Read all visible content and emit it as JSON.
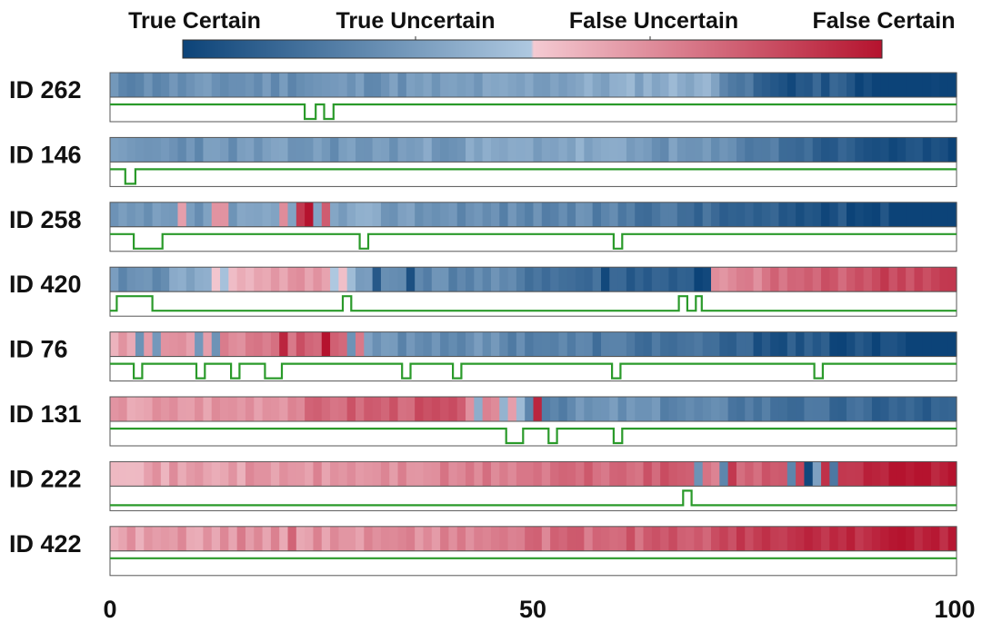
{
  "chart_data": {
    "type": "heatmap",
    "colorbar": {
      "labels": [
        "True Certain",
        "True Uncertain",
        "False Uncertain",
        "False Certain"
      ],
      "colors": {
        "true_certain": "#0c4378",
        "true_uncertain": "#aec8e0",
        "false_uncertain": "#f4cad2",
        "false_certain": "#b5132e"
      }
    },
    "xaxis": {
      "range": [
        0,
        100
      ],
      "ticks": [
        0,
        50,
        100
      ]
    },
    "line_color": "#2a9a2a",
    "rows": [
      {
        "label": "ID 262",
        "seed": 11,
        "prof": [
          [
            0,
            0.27
          ],
          [
            20,
            0.3
          ],
          [
            40,
            0.32
          ],
          [
            55,
            0.37
          ],
          [
            70,
            0.42
          ],
          [
            78,
            0.05
          ],
          [
            86,
            0.1
          ],
          [
            90,
            -0.02
          ],
          [
            100,
            -0.05
          ]
        ],
        "spikes": [],
        "dips": [
          [
            23,
            24.3
          ],
          [
            25.3,
            26.4
          ]
        ],
        "bumps": []
      },
      {
        "label": "ID 146",
        "seed": 23,
        "prof": [
          [
            0,
            0.3
          ],
          [
            30,
            0.32
          ],
          [
            55,
            0.38
          ],
          [
            75,
            0.25
          ],
          [
            85,
            0.1
          ],
          [
            100,
            -0.02
          ]
        ],
        "spikes": [],
        "dips": [
          [
            1.8,
            3
          ]
        ],
        "bumps": []
      },
      {
        "label": "ID 258",
        "seed": 37,
        "prof": [
          [
            0,
            0.28
          ],
          [
            15,
            0.32
          ],
          [
            30,
            0.36
          ],
          [
            45,
            0.28
          ],
          [
            55,
            0.25
          ],
          [
            65,
            0.2
          ],
          [
            75,
            0.1
          ],
          [
            85,
            0.05
          ],
          [
            100,
            -0.02
          ]
        ],
        "spikes": [
          [
            8.3,
            0.62
          ],
          [
            11.5,
            0.65
          ],
          [
            13.3,
            0.65
          ],
          [
            20.3,
            0.67
          ],
          [
            21.6,
            0.9
          ],
          [
            22.6,
            1.0
          ],
          [
            25.3,
            0.8
          ]
        ],
        "dips": [
          [
            2.8,
            6.2
          ],
          [
            29.5,
            30.5
          ],
          [
            59.5,
            60.5
          ]
        ],
        "bumps": []
      },
      {
        "label": "ID 420",
        "seed": 41,
        "segs": [
          [
            0,
            6,
            0.28
          ],
          [
            6,
            18,
            0.3
          ],
          [
            18,
            27,
            0.62
          ],
          [
            27,
            31,
            0.5
          ],
          [
            31,
            100,
            0.2
          ],
          [
            72,
            100,
            0.72
          ]
        ],
        "prof": [
          [
            0,
            0.28
          ],
          [
            6,
            0.3
          ],
          [
            18,
            0.62
          ],
          [
            26,
            0.62
          ],
          [
            31,
            0.28
          ],
          [
            45,
            0.25
          ],
          [
            55,
            0.15
          ],
          [
            65,
            0.1
          ],
          [
            70,
            0.15
          ],
          [
            71.5,
            0.62
          ],
          [
            80,
            0.75
          ],
          [
            90,
            0.85
          ],
          [
            100,
            0.88
          ]
        ],
        "spikes": [
          [
            26.3,
            0.5
          ],
          [
            31.2,
            0.08
          ],
          [
            34.5,
            0.05
          ],
          [
            57.7,
            0.02
          ],
          [
            68.7,
            0.0
          ],
          [
            69.5,
            0.02
          ]
        ],
        "dips": [],
        "bumps": [
          [
            0.8,
            5
          ],
          [
            27.5,
            28.5
          ],
          [
            67.2,
            68.2
          ],
          [
            69.2,
            69.9
          ]
        ]
      },
      {
        "label": "ID 76",
        "seed": 53,
        "prof": [
          [
            0,
            0.62
          ],
          [
            10,
            0.66
          ],
          [
            20,
            0.75
          ],
          [
            25,
            0.82
          ],
          [
            30,
            0.7
          ],
          [
            30.5,
            0.3
          ],
          [
            45,
            0.28
          ],
          [
            55,
            0.22
          ],
          [
            65,
            0.18
          ],
          [
            75,
            0.1
          ],
          [
            85,
            0.05
          ],
          [
            100,
            -0.02
          ]
        ],
        "spikes": [
          [
            2.5,
            0.3
          ],
          [
            5,
            0.32
          ],
          [
            9.5,
            0.32
          ],
          [
            12,
            0.3
          ],
          [
            20,
            0.95
          ],
          [
            25.3,
            1.0
          ],
          [
            27.5,
            0.3
          ]
        ],
        "dips": [
          [
            2.8,
            3.8
          ],
          [
            10.2,
            11.2
          ],
          [
            14.3,
            15.3
          ],
          [
            18.3,
            20.3
          ],
          [
            34.5,
            35.5
          ],
          [
            40.5,
            41.5
          ],
          [
            59.3,
            60.3
          ],
          [
            83.2,
            84.2
          ]
        ],
        "bumps": []
      },
      {
        "label": "ID 131",
        "seed": 67,
        "prof": [
          [
            0,
            0.62
          ],
          [
            10,
            0.64
          ],
          [
            20,
            0.68
          ],
          [
            27,
            0.78
          ],
          [
            40,
            0.82
          ],
          [
            42,
            0.72
          ],
          [
            48,
            0.55
          ],
          [
            49.5,
            0.25
          ],
          [
            60,
            0.3
          ],
          [
            75,
            0.22
          ],
          [
            85,
            0.15
          ],
          [
            99.5,
            0.1
          ]
        ],
        "spikes": [
          [
            42.5,
            0.4
          ],
          [
            45.5,
            0.42
          ],
          [
            46.5,
            0.62
          ],
          [
            49.5,
            0.95
          ]
        ],
        "dips": [
          [
            46.8,
            48.8
          ],
          [
            51.8,
            52.8
          ],
          [
            59.5,
            60.5
          ]
        ],
        "bumps": []
      },
      {
        "label": "ID 222",
        "seed": 71,
        "prof": [
          [
            0,
            0.6
          ],
          [
            25,
            0.64
          ],
          [
            40,
            0.68
          ],
          [
            55,
            0.75
          ],
          [
            68,
            0.8
          ],
          [
            72,
            0.72
          ],
          [
            80,
            0.85
          ],
          [
            90,
            0.97
          ],
          [
            100,
            1.0
          ]
        ],
        "spikes": [
          [
            69,
            0.3
          ],
          [
            72,
            0.25
          ],
          [
            73,
            0.9
          ],
          [
            76,
            0.75
          ],
          [
            80,
            0.25
          ],
          [
            81.5,
            0.95
          ],
          [
            82.3,
            0.02
          ],
          [
            83.2,
            0.35
          ],
          [
            84.5,
            0.92
          ],
          [
            85.3,
            0.2
          ]
        ],
        "dips": [],
        "bumps": [
          [
            67.7,
            68.7
          ]
        ]
      },
      {
        "label": "ID 422",
        "seed": 89,
        "prof": [
          [
            0,
            0.62
          ],
          [
            25,
            0.65
          ],
          [
            40,
            0.68
          ],
          [
            55,
            0.75
          ],
          [
            70,
            0.82
          ],
          [
            80,
            0.9
          ],
          [
            90,
            0.95
          ],
          [
            100,
            0.98
          ]
        ],
        "spikes": [
          [
            14.5,
            0.72
          ],
          [
            20.5,
            0.78
          ]
        ],
        "dips": [],
        "bumps": []
      }
    ]
  }
}
